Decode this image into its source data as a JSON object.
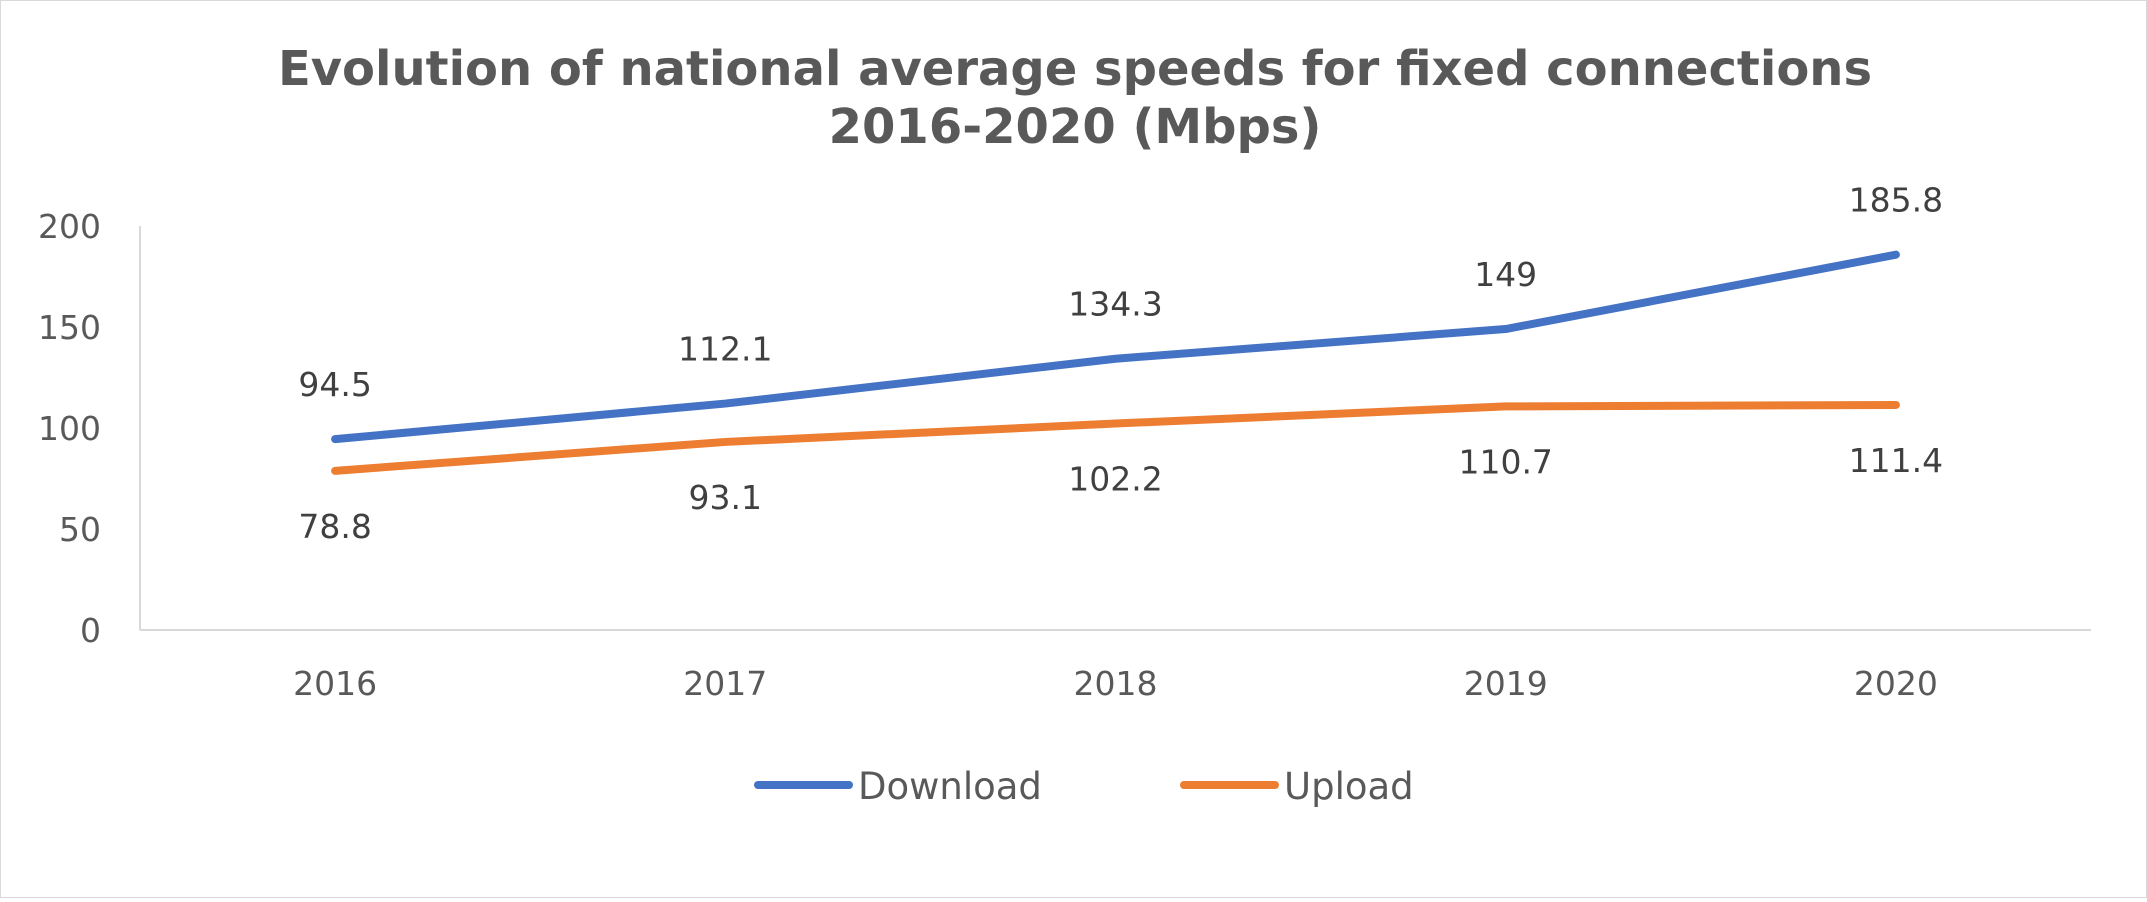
{
  "chart_data": {
    "type": "line",
    "title": "Evolution of national average speeds for fixed connections",
    "subtitle": "2016-2020 (Mbps)",
    "categories": [
      "2016",
      "2017",
      "2018",
      "2019",
      "2020"
    ],
    "series": [
      {
        "name": "Download",
        "color": "#4472C4",
        "values": [
          94.5,
          112.1,
          134.3,
          149,
          185.8
        ],
        "labels": [
          "94.5",
          "112.1",
          "134.3",
          "149",
          "185.8"
        ],
        "label_position": "above"
      },
      {
        "name": "Upload",
        "color": "#ED7D31",
        "values": [
          78.8,
          93.1,
          102.2,
          110.7,
          111.4
        ],
        "labels": [
          "78.8",
          "93.1",
          "102.2",
          "110.7",
          "111.4"
        ],
        "label_position": "below"
      }
    ],
    "yticks": [
      "0",
      "50",
      "100",
      "150",
      "200"
    ],
    "ylim": [
      0,
      200
    ],
    "grid": false,
    "legend": "bottom"
  }
}
